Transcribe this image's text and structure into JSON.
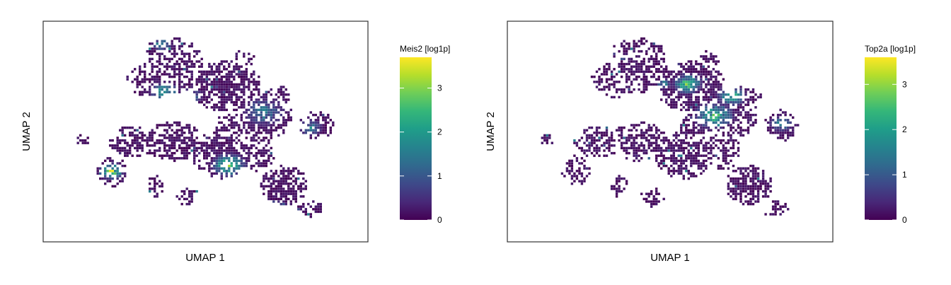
{
  "chart_data": [
    {
      "type": "scatter",
      "subtype": "umap-embedding",
      "title": "",
      "xlabel": "UMAP 1",
      "ylabel": "UMAP 2",
      "feature": "Meis2",
      "colorbar": {
        "title": "Meis2 [log1p]",
        "ticks": [
          0,
          1,
          2,
          3
        ],
        "range": [
          0,
          3.7
        ],
        "colormap": "viridis"
      },
      "grid": false,
      "axis_ticks": false,
      "legend_position": "right"
    },
    {
      "type": "scatter",
      "subtype": "umap-embedding",
      "title": "",
      "xlabel": "UMAP 1",
      "ylabel": "UMAP 2",
      "feature": "Top2a",
      "colorbar": {
        "title": "Top2a [log1p]",
        "ticks": [
          0,
          1,
          2,
          3
        ],
        "range": [
          0,
          3.6
        ],
        "colormap": "viridis"
      },
      "grid": false,
      "axis_ticks": false,
      "legend_position": "right"
    }
  ],
  "colors": {
    "viridis": [
      "#440154",
      "#482878",
      "#3e4989",
      "#31688e",
      "#26828e",
      "#1f9e89",
      "#35b779",
      "#6ece58",
      "#b5de2b",
      "#fde725"
    ],
    "frame": "#333333",
    "background": "#ffffff"
  }
}
